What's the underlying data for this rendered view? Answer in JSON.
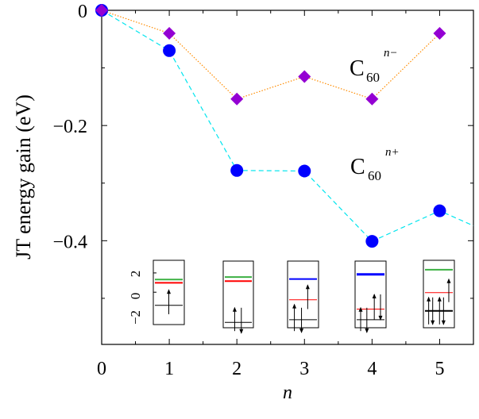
{
  "chart_data": {
    "type": "line",
    "title": "",
    "xlabel": "n",
    "ylabel": "JT energy gain (eV)",
    "xlim": [
      0,
      5.5
    ],
    "ylim": [
      -0.58,
      0
    ],
    "xticks": [
      0,
      1,
      2,
      3,
      4,
      5
    ],
    "xtick_labels": [
      "0",
      "1",
      "2",
      "3",
      "4",
      "5"
    ],
    "yticks": [
      0,
      -0.2,
      -0.4
    ],
    "ytick_labels": [
      "0",
      "−0.2",
      "−0.4"
    ],
    "grid": false,
    "series": [
      {
        "name": "C60 n-",
        "label_base": "C",
        "label_sub": "60",
        "label_sup": "n−",
        "marker": "diamond",
        "marker_color": "#9400d3",
        "line_color": "#ff8c00",
        "line_style": "dotted",
        "x": [
          0,
          1,
          2,
          3,
          4,
          5
        ],
        "y": [
          0,
          -0.04,
          -0.154,
          -0.115,
          -0.154,
          -0.04
        ]
      },
      {
        "name": "C60 n+",
        "label_base": "C",
        "label_sub": "60",
        "label_sup": "n+",
        "marker": "circle",
        "marker_color": "#0000ff",
        "line_color": "#00e5ee",
        "line_style": "dashed",
        "x": [
          0,
          1,
          2,
          3,
          4,
          5,
          5.5
        ],
        "y": [
          0,
          -0.07,
          -0.278,
          -0.279,
          -0.401,
          -0.348,
          -0.374
        ],
        "marker_count": 6
      }
    ],
    "inset": {
      "description_axis_labels": [
        "−2",
        "0",
        "2"
      ]
    }
  }
}
